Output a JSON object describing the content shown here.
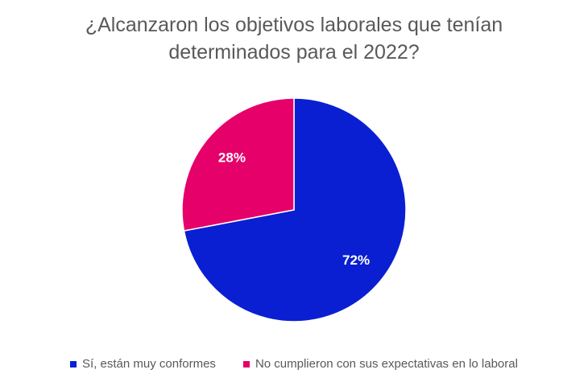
{
  "chart_data": {
    "type": "pie",
    "title": "¿Alcanzaron los objetivos laborales que tenían determinados para el 2022?",
    "title_lines": [
      "¿Alcanzaron los objetivos laborales que tenían",
      "determinados para el 2022?"
    ],
    "start_angle_deg": 0,
    "direction": "clockwise",
    "legend_position": "bottom",
    "slices": [
      {
        "name": "Sí, están muy conformes",
        "value": 72,
        "label": "72%",
        "color": "#0A1FD2"
      },
      {
        "name": "No cumplieron con sus expectativas en lo laboral",
        "value": 28,
        "label": "28%",
        "color": "#E5006A"
      }
    ]
  }
}
